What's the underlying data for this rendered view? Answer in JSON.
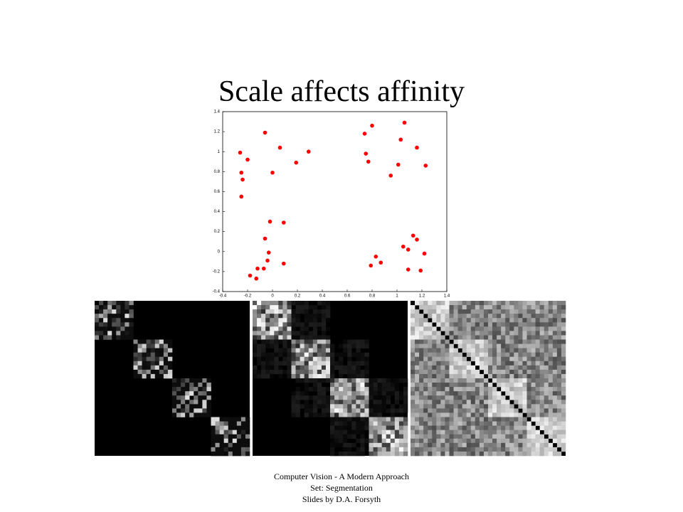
{
  "title": "Scale affects affinity",
  "footer": [
    "Computer Vision - A Modern Approach",
    "Set:  Segmentation",
    "Slides by D.A.  Forsyth"
  ],
  "chart_data": {
    "type": "scatter",
    "color": "#ff0000",
    "x": [
      -0.26,
      -0.2,
      -0.25,
      -0.24,
      -0.25,
      -0.06,
      0.06,
      0.0,
      0.19,
      0.29,
      0.74,
      0.8,
      0.75,
      0.77,
      1.06,
      1.03,
      1.16,
      1.01,
      0.95,
      1.23,
      -0.02,
      0.09,
      -0.06,
      -0.03,
      -0.04,
      -0.07,
      -0.12,
      -0.18,
      -0.13,
      0.09,
      1.13,
      1.16,
      1.05,
      1.09,
      1.22,
      0.83,
      0.87,
      0.79,
      1.09,
      1.19
    ],
    "y": [
      0.99,
      0.92,
      0.79,
      0.72,
      0.55,
      1.19,
      1.04,
      0.79,
      0.89,
      1.0,
      1.18,
      1.26,
      0.98,
      0.9,
      1.29,
      1.12,
      1.04,
      0.87,
      0.76,
      0.86,
      0.3,
      0.29,
      0.13,
      -0.01,
      -0.09,
      -0.17,
      -0.17,
      -0.24,
      -0.27,
      -0.12,
      0.16,
      0.12,
      0.05,
      0.02,
      -0.02,
      -0.05,
      -0.11,
      -0.14,
      -0.18,
      -0.19
    ],
    "xlim": [
      -0.4,
      1.4
    ],
    "ylim": [
      -0.4,
      1.4
    ],
    "xticks": [
      -0.4,
      -0.2,
      0,
      0.2,
      0.4,
      0.6,
      0.8,
      1,
      1.2,
      1.4
    ],
    "yticks": [
      -0.4,
      -0.2,
      0,
      0.2,
      0.4,
      0.6,
      0.8,
      1,
      1.2,
      1.4
    ]
  }
}
